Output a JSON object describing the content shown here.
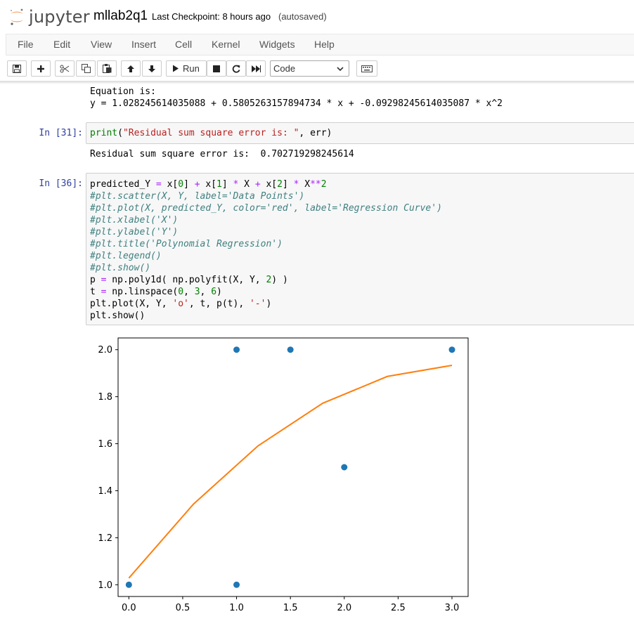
{
  "header": {
    "logo_text": "jupyter",
    "notebook_name": "mllab2q1",
    "checkpoint": "Last Checkpoint: 8 hours ago",
    "autosave": "(autosaved)"
  },
  "menu": [
    "File",
    "Edit",
    "View",
    "Insert",
    "Cell",
    "Kernel",
    "Widgets",
    "Help"
  ],
  "toolbar": {
    "run_label": "Run",
    "cell_type": "Code",
    "icons": [
      "save-icon",
      "plus-icon",
      "cut-icon",
      "copy-icon",
      "paste-icon",
      "arrow-up-icon",
      "arrow-down-icon",
      "play-icon",
      "stop-icon",
      "restart-icon",
      "fast-forward-icon",
      "keyboard-icon"
    ]
  },
  "cells": {
    "output_top": {
      "line1": "Equation is:",
      "line2": "y = 1.028245614035088 + 0.5805263157894734 * x + -0.09298245614035087 * x^2"
    },
    "cell31": {
      "prompt": "In [31]:",
      "code": {
        "fn": "print",
        "open": "(",
        "string": "\"Residual sum square error is: \"",
        "rest": ", err)"
      },
      "output": "Residual sum square error is:  0.702719298245614"
    },
    "cell36": {
      "prompt": "In [36]:",
      "lines": [
        "predicted_Y = x[0] + x[1] * X + x[2] * X**2",
        "#plt.scatter(X, Y, label='Data Points')",
        "#plt.plot(X, predicted_Y, color='red', label='Regression Curve')",
        "#plt.xlabel('X')",
        "#plt.ylabel('Y')",
        "#plt.title('Polynomial Regression')",
        "#plt.legend()",
        "#plt.show()",
        "p = np.poly1d( np.polyfit(X, Y, 2) )",
        "t = np.linspace(0, 3, 6)",
        "plt.plot(X, Y, 'o', t, p(t), '-')",
        "plt.show()"
      ]
    }
  },
  "chart_data": {
    "type": "scatter",
    "xlim": [
      -0.1,
      3.15
    ],
    "ylim": [
      0.95,
      2.05
    ],
    "xticks": [
      "0.0",
      "0.5",
      "1.0",
      "1.5",
      "2.0",
      "2.5",
      "3.0"
    ],
    "xtick_values": [
      0,
      0.5,
      1.0,
      1.5,
      2.0,
      2.5,
      3.0
    ],
    "yticks": [
      "1.0",
      "1.2",
      "1.4",
      "1.6",
      "1.8",
      "2.0"
    ],
    "ytick_values": [
      1.0,
      1.2,
      1.4,
      1.6,
      1.8,
      2.0
    ],
    "grid": false,
    "series": [
      {
        "type": "scatter",
        "color": "#1f77b4",
        "points": [
          [
            0,
            1
          ],
          [
            1,
            2
          ],
          [
            1,
            1
          ],
          [
            1.5,
            2
          ],
          [
            2,
            1.5
          ],
          [
            3,
            2
          ]
        ]
      },
      {
        "type": "line",
        "color": "#ff7f0e",
        "points": [
          [
            0,
            1.0282
          ],
          [
            0.6,
            1.3431
          ],
          [
            1.2,
            1.5911
          ],
          [
            1.8,
            1.7722
          ],
          [
            2.4,
            1.8863
          ],
          [
            3.0,
            1.9335
          ]
        ]
      }
    ]
  }
}
